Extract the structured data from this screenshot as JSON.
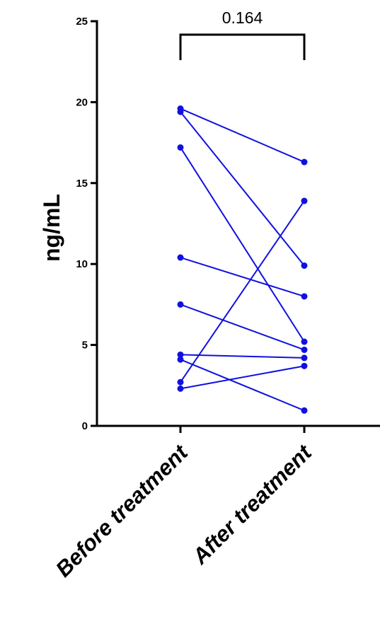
{
  "chart_data": {
    "type": "line",
    "subtype": "paired-dot-plot",
    "categories": [
      "Before treatment",
      "After treatment"
    ],
    "ylabel": "ng/mL",
    "xlabel": "",
    "ylim": [
      0,
      25
    ],
    "yticks": [
      0,
      5,
      10,
      15,
      20,
      25
    ],
    "grid": false,
    "legend": "none",
    "series_color": "#1010e0",
    "pairs": [
      {
        "before": 19.6,
        "after": 16.3
      },
      {
        "before": 19.4,
        "after": 9.9
      },
      {
        "before": 17.2,
        "after": 5.2
      },
      {
        "before": 10.4,
        "after": 8.0
      },
      {
        "before": 7.5,
        "after": 4.7
      },
      {
        "before": 4.4,
        "after": 4.2
      },
      {
        "before": 4.1,
        "after": 0.95
      },
      {
        "before": 2.7,
        "after": 13.9
      },
      {
        "before": 2.3,
        "after": 3.7
      }
    ],
    "annotation": {
      "text": "0.164",
      "between": [
        "Before treatment",
        "After treatment"
      ]
    }
  }
}
